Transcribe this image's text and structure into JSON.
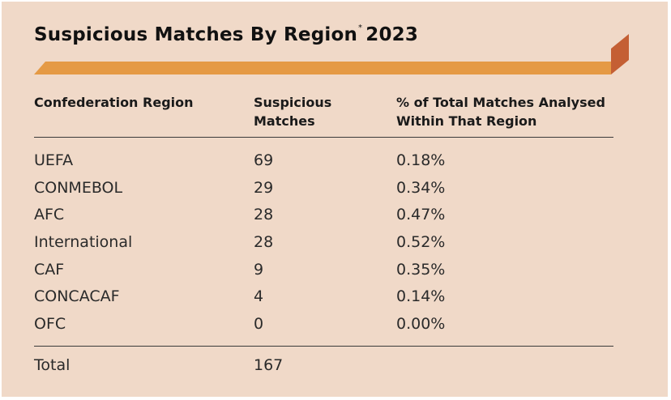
{
  "title": {
    "text": "Suspicious Matches By Region",
    "footnote_mark": "*",
    "year": "2023"
  },
  "colors": {
    "background": "#f0d9c8",
    "ribbon": "#e59a45",
    "ribbon_fold": "#c45f34"
  },
  "chart_data": {
    "type": "table",
    "title": "Suspicious Matches By Region* 2023",
    "columns": [
      "Confederation Region",
      "Suspicious Matches",
      "% of Total Matches Analysed Within That Region"
    ],
    "header_lines": {
      "region": [
        "Confederation Region"
      ],
      "matches": [
        "Suspicious",
        "Matches"
      ],
      "percent": [
        "% of Total Matches Analysed",
        "Within That Region"
      ]
    },
    "rows": [
      {
        "region": "UEFA",
        "matches": "69",
        "percent": "0.18%"
      },
      {
        "region": "CONMEBOL",
        "matches": "29",
        "percent": "0.34%"
      },
      {
        "region": "AFC",
        "matches": "28",
        "percent": "0.47%"
      },
      {
        "region": "International",
        "matches": "28",
        "percent": "0.52%"
      },
      {
        "region": "CAF",
        "matches": "9",
        "percent": "0.35%"
      },
      {
        "region": "CONCACAF",
        "matches": "4",
        "percent": "0.14%"
      },
      {
        "region": "OFC",
        "matches": "0",
        "percent": "0.00%"
      }
    ],
    "total": {
      "label": "Total",
      "matches": "167"
    }
  }
}
